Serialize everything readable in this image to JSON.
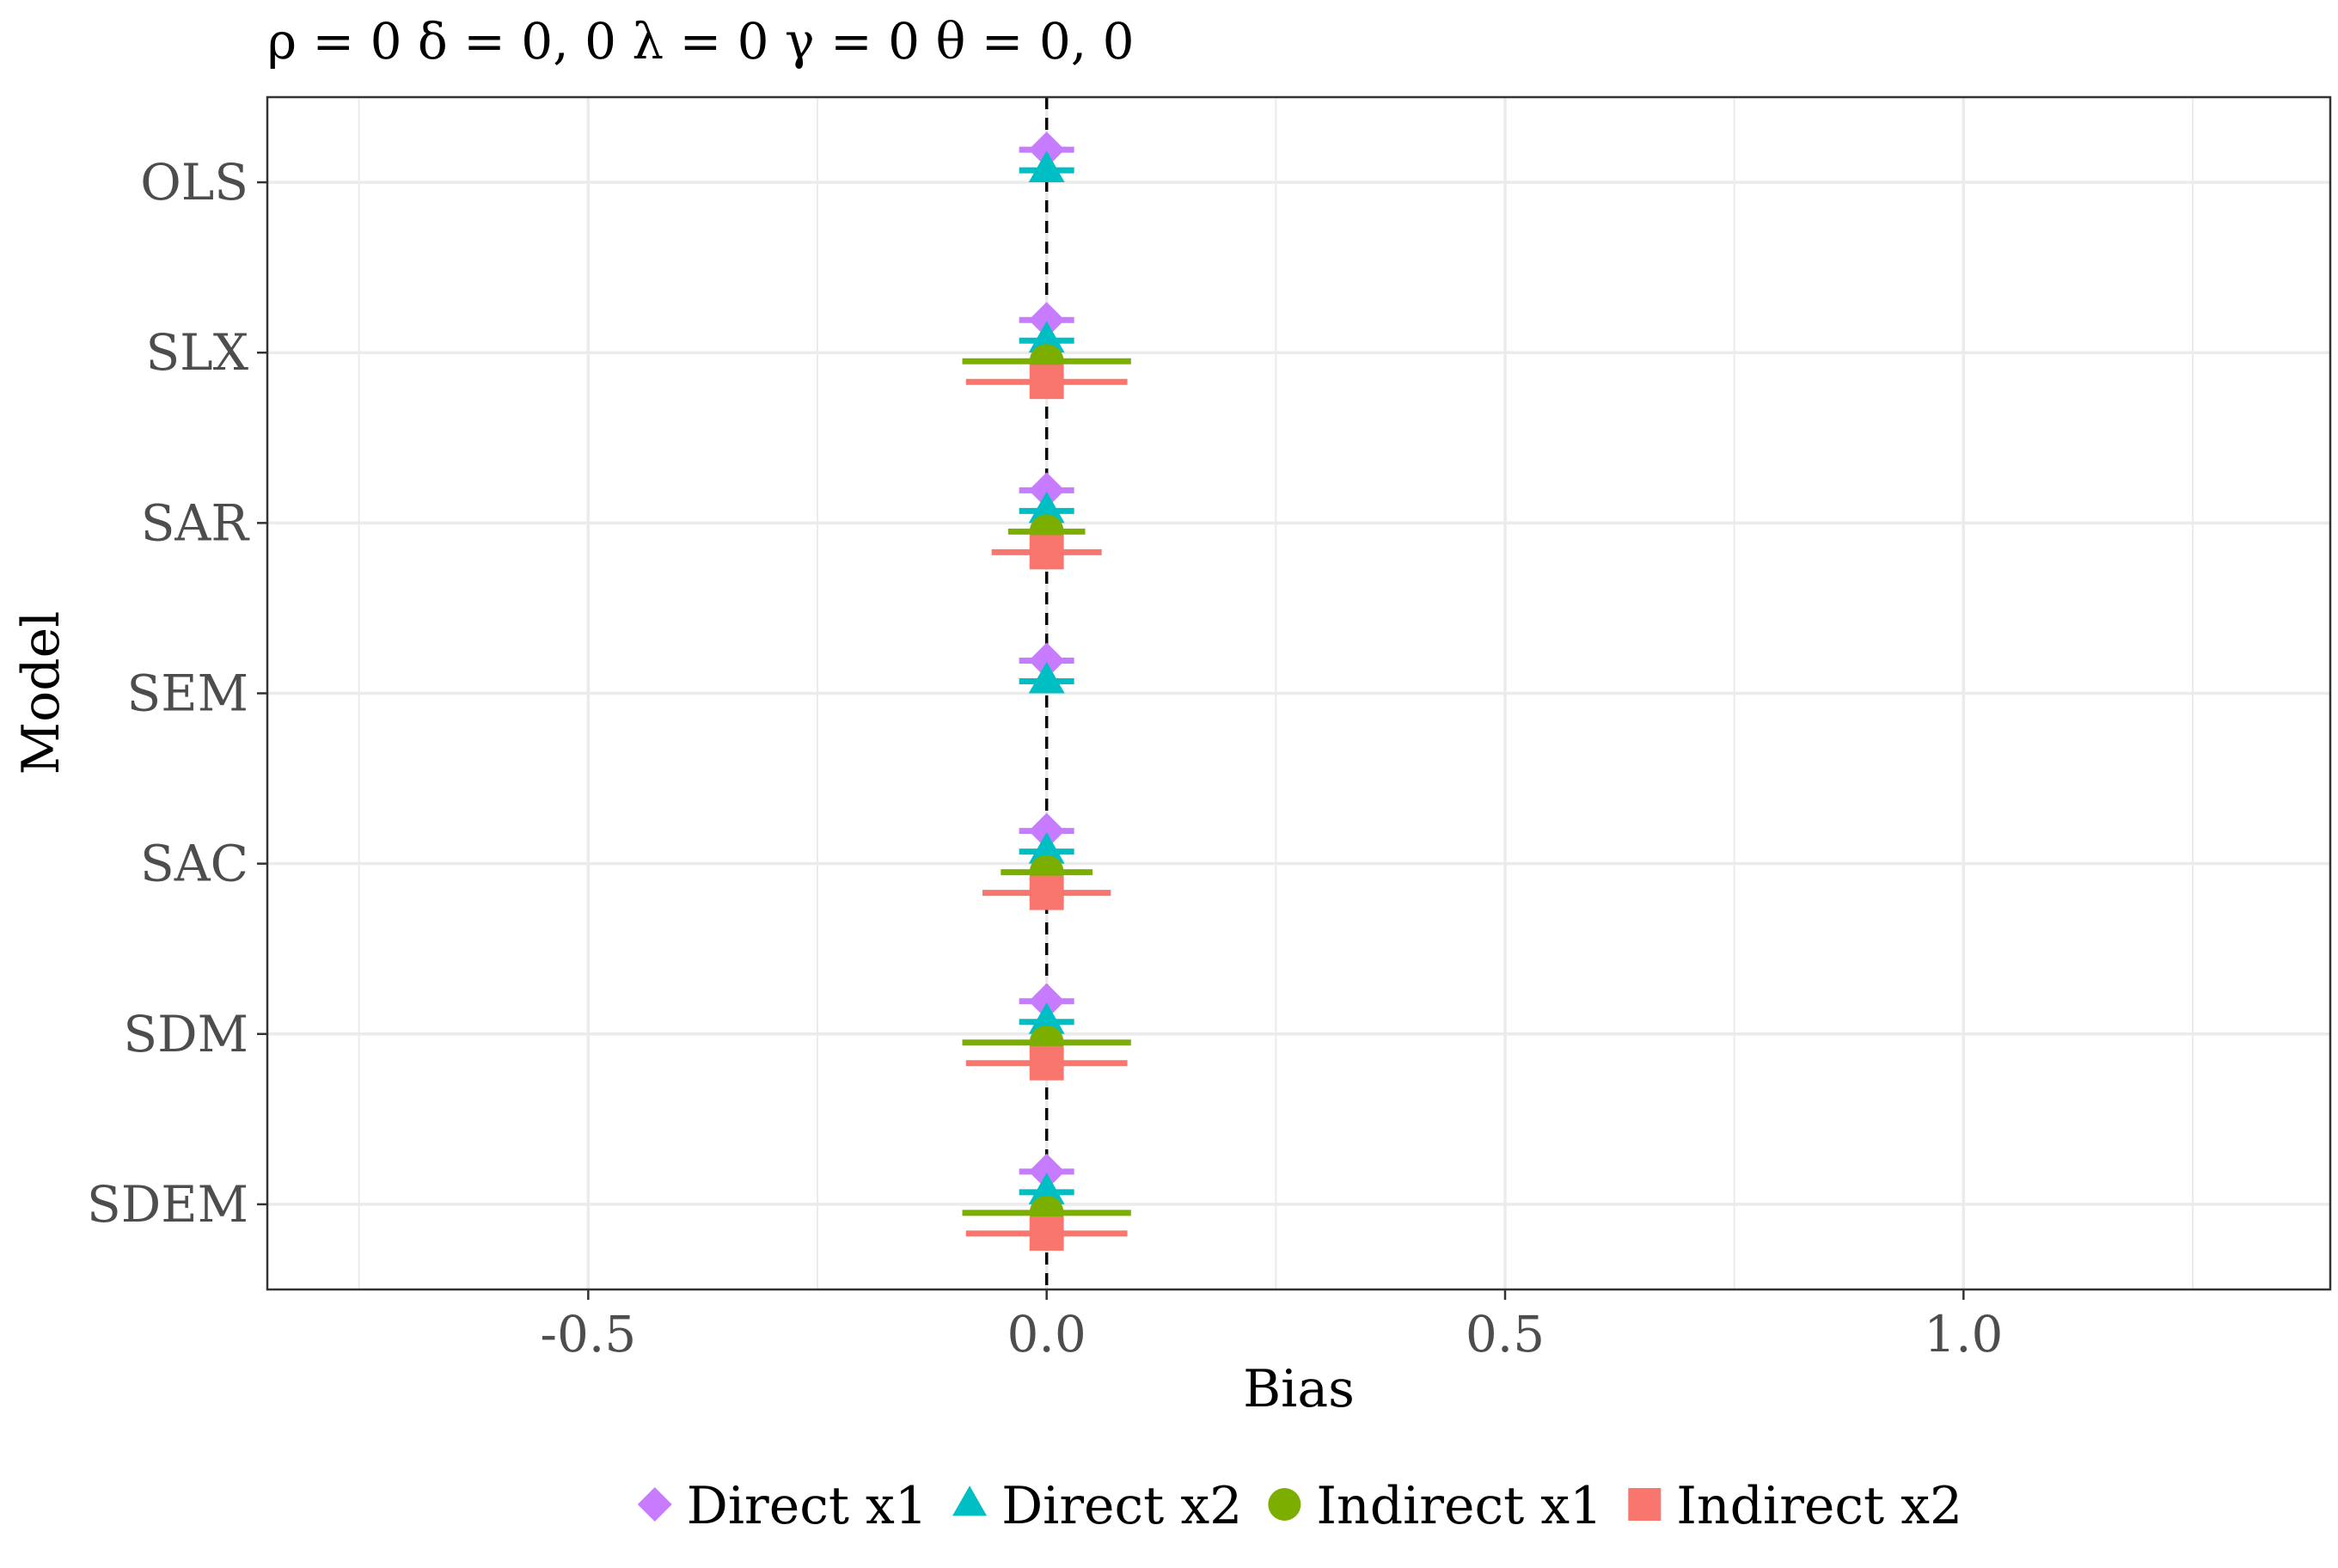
{
  "chart_data": {
    "type": "scatter",
    "title": "ρ = 0  δ = 0, 0  λ = 0  γ = 0  θ = 0, 0",
    "xlabel": "Bias",
    "ylabel": "Model",
    "xlim": [
      -0.85,
      1.4
    ],
    "x_ticks": [
      -0.5,
      0.0,
      0.5,
      1.0
    ],
    "x_tick_labels": [
      "-0.5",
      "0.0",
      "0.5",
      "1.0"
    ],
    "categories": [
      "OLS",
      "SLX",
      "SAR",
      "SEM",
      "SAC",
      "SDM",
      "SDEM"
    ],
    "grid": true,
    "reference_line": {
      "x": 0,
      "style": "dashed",
      "color": "#000000"
    },
    "legend": {
      "position": "bottom"
    },
    "series": [
      {
        "name": "Direct x1",
        "marker": "diamond",
        "color": "#C77CFF",
        "points": [
          {
            "category": "OLS",
            "estimate": 0.0,
            "low": -0.03,
            "high": 0.03
          },
          {
            "category": "SLX",
            "estimate": 0.0,
            "low": -0.03,
            "high": 0.03
          },
          {
            "category": "SAR",
            "estimate": 0.0,
            "low": -0.03,
            "high": 0.03
          },
          {
            "category": "SEM",
            "estimate": 0.0,
            "low": -0.03,
            "high": 0.03
          },
          {
            "category": "SAC",
            "estimate": 0.0,
            "low": -0.03,
            "high": 0.03
          },
          {
            "category": "SDM",
            "estimate": 0.0,
            "low": -0.03,
            "high": 0.03
          },
          {
            "category": "SDEM",
            "estimate": 0.0,
            "low": -0.03,
            "high": 0.03
          }
        ]
      },
      {
        "name": "Direct x2",
        "marker": "triangle",
        "color": "#00BFC4",
        "points": [
          {
            "category": "OLS",
            "estimate": 0.0,
            "low": -0.03,
            "high": 0.03
          },
          {
            "category": "SLX",
            "estimate": 0.0,
            "low": -0.03,
            "high": 0.03
          },
          {
            "category": "SAR",
            "estimate": 0.0,
            "low": -0.03,
            "high": 0.03
          },
          {
            "category": "SEM",
            "estimate": 0.0,
            "low": -0.03,
            "high": 0.03
          },
          {
            "category": "SAC",
            "estimate": 0.0,
            "low": -0.03,
            "high": 0.03
          },
          {
            "category": "SDM",
            "estimate": 0.0,
            "low": -0.03,
            "high": 0.03
          },
          {
            "category": "SDEM",
            "estimate": 0.0,
            "low": -0.03,
            "high": 0.03
          }
        ]
      },
      {
        "name": "Indirect x1",
        "marker": "circle",
        "color": "#7CAE00",
        "points": [
          {
            "category": "SLX",
            "estimate": 0.0,
            "low": -0.092,
            "high": 0.092
          },
          {
            "category": "SAR",
            "estimate": 0.0,
            "low": -0.042,
            "high": 0.042
          },
          {
            "category": "SAC",
            "estimate": 0.0,
            "low": -0.05,
            "high": 0.05
          },
          {
            "category": "SDM",
            "estimate": 0.0,
            "low": -0.092,
            "high": 0.092
          },
          {
            "category": "SDEM",
            "estimate": 0.0,
            "low": -0.092,
            "high": 0.092
          }
        ]
      },
      {
        "name": "Indirect x2",
        "marker": "square",
        "color": "#F8766D",
        "points": [
          {
            "category": "SLX",
            "estimate": 0.0,
            "low": -0.088,
            "high": 0.088
          },
          {
            "category": "SAR",
            "estimate": 0.0,
            "low": -0.06,
            "high": 0.06
          },
          {
            "category": "SAC",
            "estimate": 0.0,
            "low": -0.07,
            "high": 0.07
          },
          {
            "category": "SDM",
            "estimate": 0.0,
            "low": -0.088,
            "high": 0.088
          },
          {
            "category": "SDEM",
            "estimate": 0.0,
            "low": -0.088,
            "high": 0.088
          }
        ]
      }
    ]
  }
}
